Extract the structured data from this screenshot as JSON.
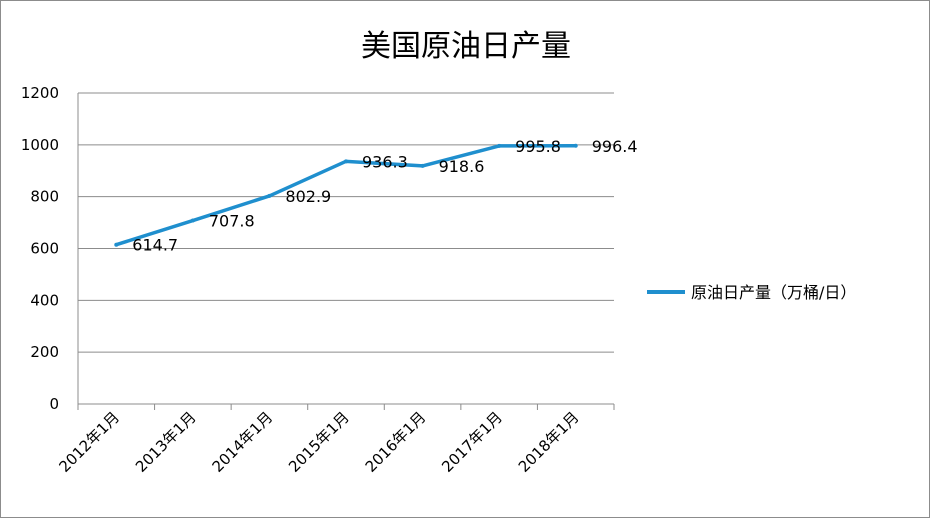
{
  "chart_data": {
    "type": "line",
    "title": "美国原油日产量",
    "categories": [
      "2012年1月",
      "2013年1月",
      "2014年1月",
      "2015年1月",
      "2016年1月",
      "2017年1月",
      "2018年1月"
    ],
    "series": [
      {
        "name": "原油日产量（万桶/日）",
        "values": [
          614.7,
          707.8,
          802.9,
          936.3,
          918.6,
          995.8,
          996.4
        ],
        "color": "#1f8fce"
      }
    ],
    "y_ticks": [
      "0",
      "200",
      "400",
      "600",
      "800",
      "1000",
      "1200"
    ],
    "ylim": [
      0,
      1200
    ],
    "grid": true,
    "legend_position": "right",
    "data_labels": [
      "614.7",
      "707.8",
      "802.9",
      "936.3",
      "918.6",
      "995.8",
      "996.4"
    ]
  }
}
